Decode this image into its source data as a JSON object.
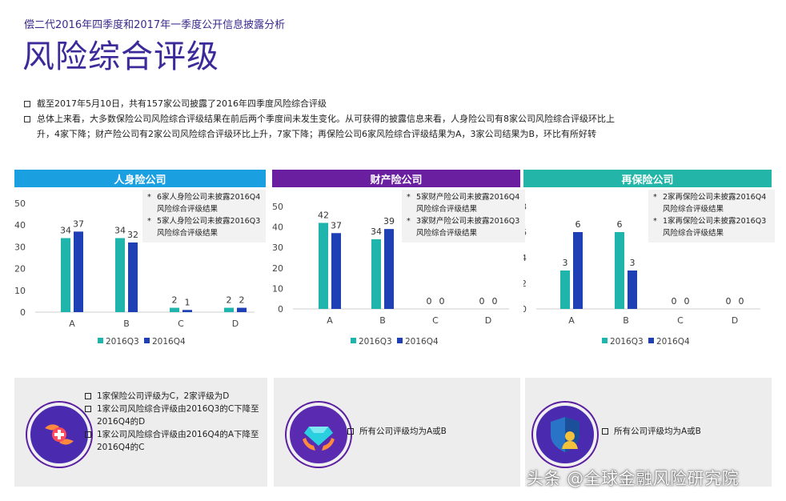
{
  "header": {
    "subtitle": "偿二代2016年四季度和2017年一季度公开信息披露分析",
    "title": "风险综合评级"
  },
  "bullets": [
    "截至2017年5月10日，共有157家公司披露了2016年四季度风险综合评级",
    "总体上来看，大多数保险公司风险综合评级结果在前后两个季度间未发生变化。从可获得的披露信息来看，人身险公司有8家公司风险综合评级环比上",
    "升，4家下降；财产险公司有2家公司风险综合评级环比上升，7家下降；再保险公司6家风险综合评级结果为A，3家公司结果为B，环比有所好转"
  ],
  "colors": {
    "q3": "#1fb5ad",
    "q4": "#1f3fb5",
    "life": "#1a9fe0",
    "property": "#6a1fa0",
    "reinsurance": "#22b5a8"
  },
  "chart_data": [
    {
      "type": "bar",
      "title": "人身险公司",
      "categories": [
        "A",
        "B",
        "C",
        "D"
      ],
      "series": [
        {
          "name": "2016Q3",
          "values": [
            34,
            34,
            2,
            2
          ]
        },
        {
          "name": "2016Q4",
          "values": [
            37,
            32,
            1,
            2
          ]
        }
      ],
      "ylim": [
        0,
        50
      ],
      "yticks": [
        0,
        10,
        20,
        30,
        40,
        50
      ],
      "notes": [
        "6家人身险公司未披露2016Q4风险综合评级结果",
        "5家人身险公司未披露2016Q3风险综合评级结果"
      ]
    },
    {
      "type": "bar",
      "title": "财产险公司",
      "categories": [
        "A",
        "B",
        "C",
        "D"
      ],
      "series": [
        {
          "name": "2016Q3",
          "values": [
            42,
            34,
            0,
            0
          ]
        },
        {
          "name": "2016Q4",
          "values": [
            37,
            39,
            0,
            0
          ]
        }
      ],
      "ylim": [
        0,
        50
      ],
      "yticks": [
        0,
        10,
        20,
        30,
        40,
        50
      ],
      "notes": [
        "5家财产险公司未披露2016Q4风险综合评级结果",
        "3家财产险公司未披露2016Q3风险综合评级结果"
      ]
    },
    {
      "type": "bar",
      "title": "再保险公司",
      "categories": [
        "A",
        "B",
        "C",
        "D"
      ],
      "series": [
        {
          "name": "2016Q3",
          "values": [
            3,
            6,
            0,
            0
          ]
        },
        {
          "name": "2016Q4",
          "values": [
            6,
            3,
            0,
            0
          ]
        }
      ],
      "ylim": [
        0,
        8
      ],
      "yticks": [
        0,
        2,
        4,
        6,
        8
      ],
      "notes": [
        "2家再保险公司未披露2016Q4风险综合评级结果",
        "1家再保险公司未披露2016Q3风险综合评级结果"
      ]
    }
  ],
  "bottom": {
    "life": [
      "1家保险公司评级为C，2家评级为D",
      "1家公司风险综合评级由2016Q3的C下降至2016Q4的D",
      "1家公司风险综合评级由2016Q4的A下降至2016Q4的C"
    ],
    "property": [
      "所有公司评级均为A或B"
    ],
    "reinsurance": [
      "所有公司评级均为A或B"
    ],
    "icons": [
      "hands-heart-icon",
      "hands-diamond-icon",
      "shield-person-icon"
    ]
  },
  "watermark": "头条 @全球金融风险研究院"
}
